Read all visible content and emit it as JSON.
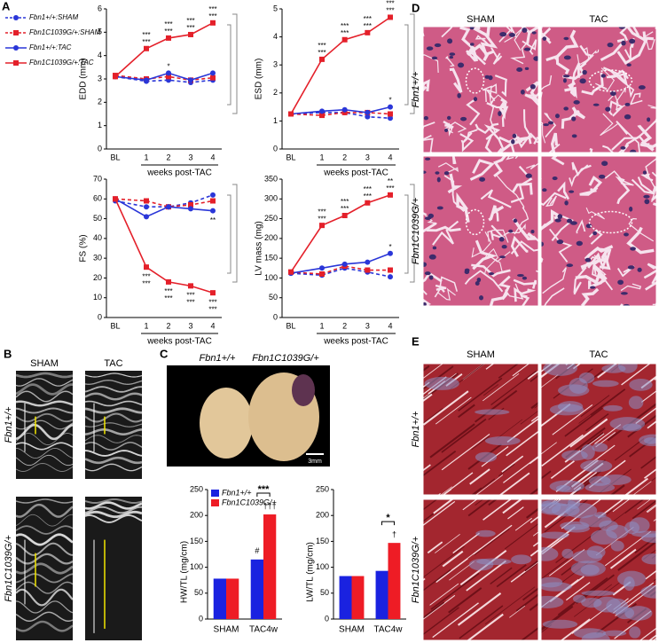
{
  "chart_data": [
    {
      "type": "line",
      "ylabel": "EDD (mm)",
      "xlabel": "weeks post-TAC",
      "categories": [
        "BL",
        "1",
        "2",
        "3",
        "4"
      ],
      "ylim": [
        0,
        6
      ],
      "yticks": [
        0,
        1,
        2,
        3,
        4,
        5,
        6
      ],
      "series": [
        {
          "name": "Fbn1+/+:SHAM",
          "color": "#2a36d8",
          "dashed": true,
          "marker": "circle",
          "values": [
            3.1,
            2.9,
            2.95,
            2.85,
            2.95
          ]
        },
        {
          "name": "Fbn1C1039G/+:SHAM",
          "color": "#e4202a",
          "dashed": true,
          "marker": "square",
          "values": [
            3.15,
            3.0,
            3.1,
            2.95,
            3.05
          ]
        },
        {
          "name": "Fbn1+/+:TAC",
          "color": "#2a36d8",
          "dashed": false,
          "marker": "circle",
          "values": [
            3.1,
            2.95,
            3.25,
            2.95,
            3.25
          ]
        },
        {
          "name": "Fbn1C1039G/+:TAC",
          "color": "#e4202a",
          "dashed": false,
          "marker": "square",
          "values": [
            3.1,
            4.3,
            4.75,
            4.9,
            5.4
          ]
        }
      ],
      "annotations": [
        {
          "series": 3,
          "index": 1,
          "position": "above",
          "text": [
            "***",
            "***"
          ]
        },
        {
          "series": 3,
          "index": 2,
          "position": "above",
          "text": [
            "***",
            "***"
          ]
        },
        {
          "series": 3,
          "index": 3,
          "position": "above",
          "text": [
            "***",
            "***"
          ]
        },
        {
          "series": 3,
          "index": 4,
          "position": "above",
          "text": [
            "***",
            "***"
          ]
        },
        {
          "series": 2,
          "index": 2,
          "position": "above",
          "text": [
            "*"
          ]
        }
      ]
    },
    {
      "type": "line",
      "ylabel": "ESD (mm)",
      "xlabel": "weeks post-TAC",
      "categories": [
        "BL",
        "1",
        "2",
        "3",
        "4"
      ],
      "ylim": [
        0,
        5
      ],
      "yticks": [
        0,
        1,
        2,
        3,
        4,
        5
      ],
      "series": [
        {
          "color": "#2a36d8",
          "dashed": true,
          "marker": "circle",
          "values": [
            1.25,
            1.3,
            1.3,
            1.15,
            1.1
          ]
        },
        {
          "color": "#e4202a",
          "dashed": true,
          "marker": "square",
          "values": [
            1.25,
            1.2,
            1.3,
            1.3,
            1.25
          ]
        },
        {
          "color": "#2a36d8",
          "dashed": false,
          "marker": "circle",
          "values": [
            1.25,
            1.35,
            1.4,
            1.3,
            1.5
          ]
        },
        {
          "color": "#e4202a",
          "dashed": false,
          "marker": "square",
          "values": [
            1.25,
            3.2,
            3.9,
            4.15,
            4.7
          ]
        }
      ],
      "annotations": [
        {
          "series": 3,
          "index": 1,
          "position": "above",
          "text": [
            "***",
            "***"
          ]
        },
        {
          "series": 3,
          "index": 2,
          "position": "above",
          "text": [
            "***",
            "***"
          ]
        },
        {
          "series": 3,
          "index": 3,
          "position": "above",
          "text": [
            "***",
            "***"
          ]
        },
        {
          "series": 3,
          "index": 4,
          "position": "above",
          "text": [
            "***",
            "***"
          ]
        },
        {
          "series": 2,
          "index": 4,
          "position": "above",
          "text": [
            "*"
          ]
        }
      ]
    },
    {
      "type": "line",
      "ylabel": "FS (%)",
      "xlabel": "weeks post-TAC",
      "categories": [
        "BL",
        "1",
        "2",
        "3",
        "4"
      ],
      "ylim": [
        0,
        70
      ],
      "yticks": [
        0,
        10,
        20,
        30,
        40,
        50,
        60,
        70
      ],
      "series": [
        {
          "color": "#2a36d8",
          "dashed": true,
          "marker": "circle",
          "values": [
            59,
            56,
            56,
            58,
            62
          ]
        },
        {
          "color": "#e4202a",
          "dashed": true,
          "marker": "square",
          "values": [
            60,
            59,
            56,
            57,
            59
          ]
        },
        {
          "color": "#2a36d8",
          "dashed": false,
          "marker": "circle",
          "values": [
            60,
            51,
            56,
            55,
            54
          ]
        },
        {
          "color": "#e4202a",
          "dashed": false,
          "marker": "square",
          "values": [
            60,
            25.5,
            18,
            16,
            12.5
          ]
        }
      ],
      "annotations": [
        {
          "series": 3,
          "index": 1,
          "position": "below",
          "text": [
            "***",
            "***"
          ]
        },
        {
          "series": 3,
          "index": 2,
          "position": "below",
          "text": [
            "***",
            "***"
          ]
        },
        {
          "series": 3,
          "index": 3,
          "position": "below",
          "text": [
            "***",
            "***"
          ]
        },
        {
          "series": 3,
          "index": 4,
          "position": "below",
          "text": [
            "***",
            "***"
          ]
        },
        {
          "series": 2,
          "index": 4,
          "position": "below",
          "text": [
            "**"
          ]
        }
      ]
    },
    {
      "type": "line",
      "ylabel": "LV mass (mg)",
      "xlabel": "weeks post-TAC",
      "categories": [
        "BL",
        "1",
        "2",
        "3",
        "4"
      ],
      "ylim": [
        0,
        350
      ],
      "yticks": [
        0,
        50,
        100,
        150,
        200,
        250,
        300,
        350
      ],
      "series": [
        {
          "color": "#2a36d8",
          "dashed": true,
          "marker": "circle",
          "values": [
            112,
            107,
            125,
            115,
            103
          ]
        },
        {
          "color": "#e4202a",
          "dashed": true,
          "marker": "square",
          "values": [
            115,
            110,
            130,
            120,
            120
          ]
        },
        {
          "color": "#2a36d8",
          "dashed": false,
          "marker": "circle",
          "values": [
            112,
            125,
            135,
            140,
            162
          ]
        },
        {
          "color": "#e4202a",
          "dashed": false,
          "marker": "square",
          "values": [
            115,
            233,
            258,
            290,
            310
          ]
        }
      ],
      "annotations": [
        {
          "series": 3,
          "index": 1,
          "position": "above",
          "text": [
            "***",
            "***"
          ]
        },
        {
          "series": 3,
          "index": 2,
          "position": "above",
          "text": [
            "***",
            "***"
          ]
        },
        {
          "series": 3,
          "index": 3,
          "position": "above",
          "text": [
            "***",
            "***"
          ]
        },
        {
          "series": 3,
          "index": 4,
          "position": "above",
          "text": [
            "**",
            "***"
          ]
        },
        {
          "series": 2,
          "index": 4,
          "position": "above",
          "text": [
            "*"
          ]
        }
      ]
    },
    {
      "type": "bar",
      "ylabel": "HW/TL (mg/cm)",
      "categories": [
        "SHAM",
        "TAC4w"
      ],
      "ylim": [
        0,
        250
      ],
      "yticks": [
        0,
        50,
        100,
        150,
        200,
        250
      ],
      "series": [
        {
          "name": "Fbn1+/+",
          "color": "#1a22e0",
          "values": [
            78,
            115
          ]
        },
        {
          "name": "Fbn1C1039G/+",
          "color": "#ee1c25",
          "values": [
            78,
            202
          ]
        }
      ],
      "annotations": [
        {
          "series": 0,
          "index": 1,
          "text": "#"
        },
        {
          "series": 1,
          "index": 1,
          "text": "†††"
        },
        {
          "between": [
            0,
            1
          ],
          "index": 1,
          "text": "***"
        }
      ]
    },
    {
      "type": "bar",
      "ylabel": "LW/TL (mg/cm)",
      "categories": [
        "SHAM",
        "TAC4w"
      ],
      "ylim": [
        0,
        250
      ],
      "yticks": [
        0,
        50,
        100,
        150,
        200,
        250
      ],
      "series": [
        {
          "color": "#1a22e0",
          "values": [
            83,
            93
          ]
        },
        {
          "color": "#ee1c25",
          "values": [
            83,
            147
          ]
        }
      ],
      "annotations": [
        {
          "series": 1,
          "index": 1,
          "text": "†"
        },
        {
          "between": [
            0,
            1
          ],
          "index": 1,
          "text": "*"
        }
      ]
    }
  ],
  "panel_labels": [
    "A",
    "B",
    "C",
    "D",
    "E"
  ],
  "echo": {
    "columns": [
      "SHAM",
      "TAC"
    ],
    "rows": [
      "Fbn1+/+",
      "Fbn1C1039G/+"
    ]
  },
  "heart_photo": {
    "labels": [
      "Fbn1+/+",
      "Fbn1C1039G/+"
    ],
    "scale_bar": "3mm"
  },
  "he_histology": {
    "columns": [
      "SHAM",
      "TAC"
    ],
    "rows": [
      "Fbn1+/+",
      "Fbn1C1039G/+"
    ]
  },
  "trichrome_histology": {
    "columns": [
      "SHAM",
      "TAC"
    ],
    "rows": [
      "Fbn1+/+",
      "Fbn1C1039G/+"
    ]
  }
}
